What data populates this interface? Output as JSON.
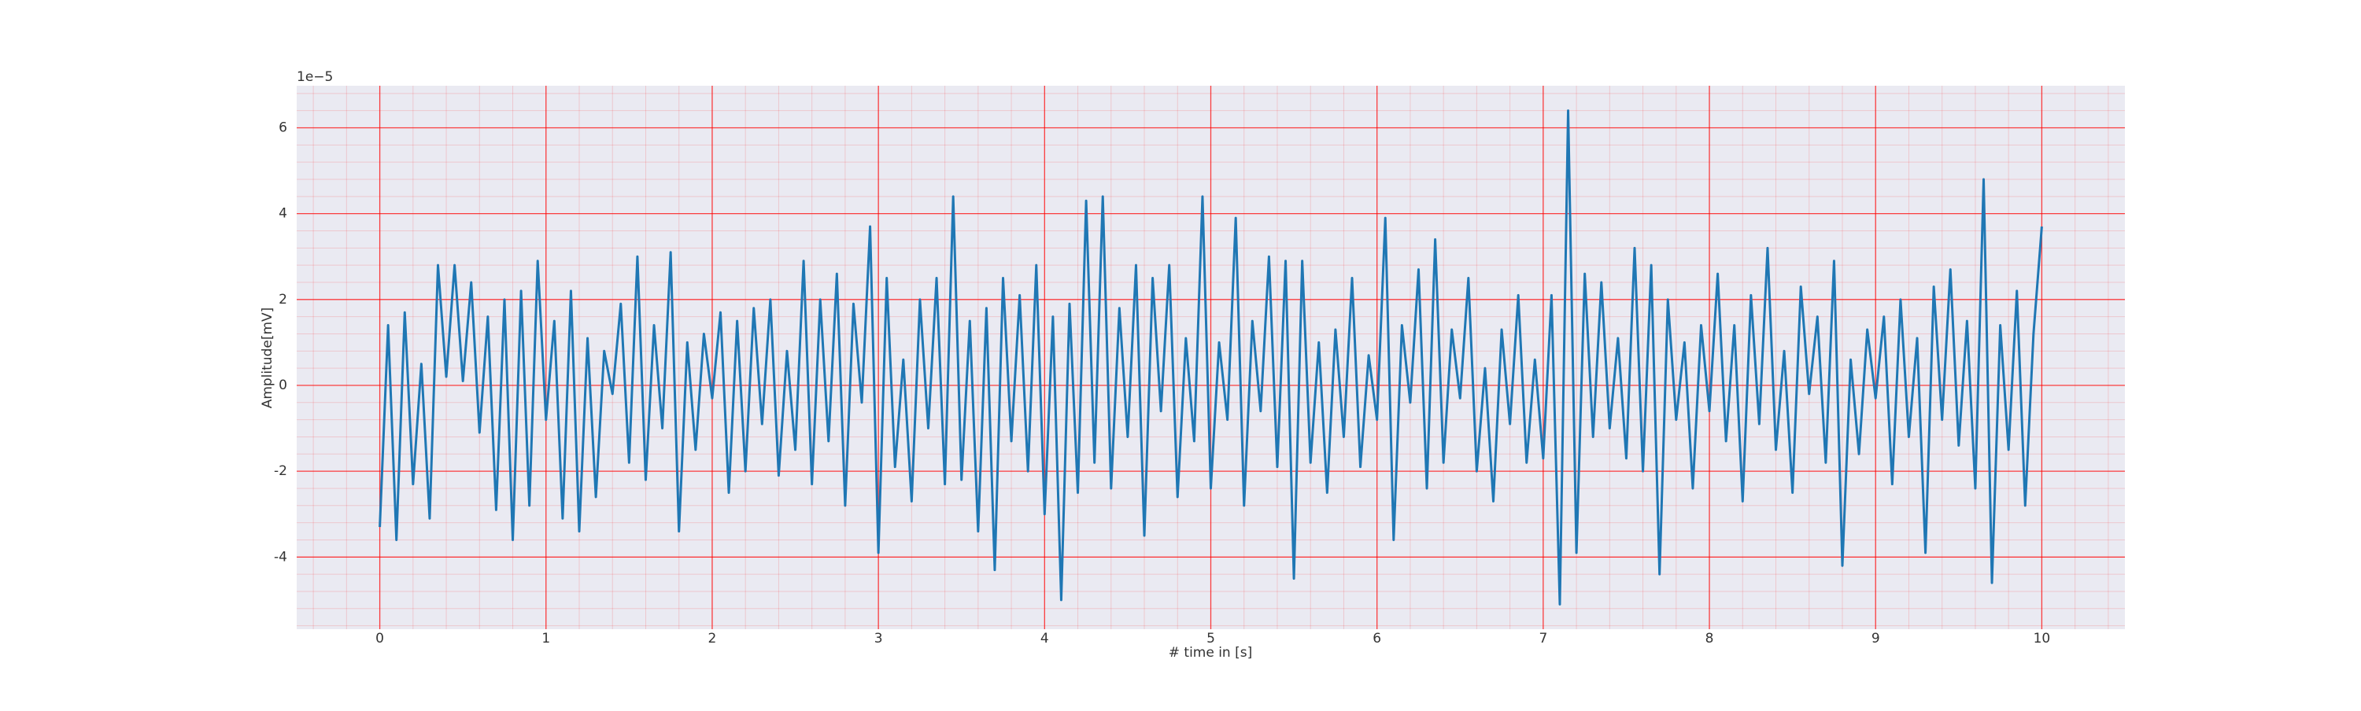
{
  "chart_data": {
    "type": "line",
    "x_label": "# time in [s]",
    "y_label": "Amplitude[mV]",
    "y_offset_label": "1e−5",
    "x": [
      0,
      0.05,
      0.1,
      0.15,
      0.2,
      0.25,
      0.3,
      0.35,
      0.4,
      0.45,
      0.5,
      0.55,
      0.6,
      0.65,
      0.7,
      0.75,
      0.8,
      0.85,
      0.9,
      0.95,
      1,
      1.05,
      1.1,
      1.15,
      1.2,
      1.25,
      1.3,
      1.35,
      1.4,
      1.45,
      1.5,
      1.55,
      1.6,
      1.65,
      1.7,
      1.75,
      1.8,
      1.85,
      1.9,
      1.95,
      2,
      2.05,
      2.1,
      2.15,
      2.2,
      2.25,
      2.3,
      2.35,
      2.4,
      2.45,
      2.5,
      2.55,
      2.6,
      2.65,
      2.7,
      2.75,
      2.8,
      2.85,
      2.9,
      2.95,
      3,
      3.05,
      3.1,
      3.15,
      3.2,
      3.25,
      3.3,
      3.35,
      3.4,
      3.45,
      3.5,
      3.55,
      3.6,
      3.65,
      3.7,
      3.75,
      3.8,
      3.85,
      3.9,
      3.95,
      4,
      4.05,
      4.1,
      4.15,
      4.2,
      4.25,
      4.3,
      4.35,
      4.4,
      4.45,
      4.5,
      4.55,
      4.6,
      4.65,
      4.7,
      4.75,
      4.8,
      4.85,
      4.9,
      4.95,
      5,
      5.05,
      5.1,
      5.15,
      5.2,
      5.25,
      5.3,
      5.35,
      5.4,
      5.45,
      5.5,
      5.55,
      5.6,
      5.65,
      5.7,
      5.75,
      5.8,
      5.85,
      5.9,
      5.95,
      6,
      6.05,
      6.1,
      6.15,
      6.2,
      6.25,
      6.3,
      6.35,
      6.4,
      6.45,
      6.5,
      6.55,
      6.6,
      6.65,
      6.7,
      6.75,
      6.8,
      6.85,
      6.9,
      6.95,
      7,
      7.05,
      7.1,
      7.15,
      7.2,
      7.25,
      7.3,
      7.35,
      7.4,
      7.45,
      7.5,
      7.55,
      7.6,
      7.65,
      7.7,
      7.75,
      7.8,
      7.85,
      7.9,
      7.95,
      8,
      8.05,
      8.1,
      8.15,
      8.2,
      8.25,
      8.3,
      8.35,
      8.4,
      8.45,
      8.5,
      8.55,
      8.6,
      8.65,
      8.7,
      8.75,
      8.8,
      8.85,
      8.9,
      8.95,
      9,
      9.05,
      9.1,
      9.15,
      9.2,
      9.25,
      9.3,
      9.35,
      9.4,
      9.45,
      9.5,
      9.55,
      9.6,
      9.65,
      9.7,
      9.75,
      9.8,
      9.85,
      9.9,
      9.95,
      10
    ],
    "values": [
      -3.3,
      1.4,
      -3.6,
      1.7,
      -2.3,
      0.5,
      -3.1,
      2.8,
      0.2,
      2.8,
      0.1,
      2.4,
      -1.1,
      1.6,
      -2.9,
      2.0,
      -3.6,
      2.2,
      -2.8,
      2.9,
      -0.8,
      1.5,
      -3.1,
      2.2,
      -3.4,
      1.1,
      -2.6,
      0.8,
      -0.2,
      1.9,
      -1.8,
      3.0,
      -2.2,
      1.4,
      -1.0,
      3.1,
      -3.4,
      1.0,
      -1.5,
      1.2,
      -0.3,
      1.7,
      -2.5,
      1.5,
      -2.0,
      1.8,
      -0.9,
      2.0,
      -2.1,
      0.8,
      -1.5,
      2.9,
      -2.3,
      2.0,
      -1.3,
      2.6,
      -2.8,
      1.9,
      -0.4,
      3.7,
      -3.9,
      2.5,
      -1.9,
      0.6,
      -2.7,
      2.0,
      -1.0,
      2.5,
      -2.3,
      4.4,
      -2.2,
      1.5,
      -3.4,
      1.8,
      -4.3,
      2.5,
      -1.3,
      2.1,
      -2.0,
      2.8,
      -3.0,
      1.6,
      -5.0,
      1.9,
      -2.5,
      4.3,
      -1.8,
      4.4,
      -2.4,
      1.8,
      -1.2,
      2.8,
      -3.5,
      2.5,
      -0.6,
      2.8,
      -2.6,
      1.1,
      -1.3,
      4.4,
      -2.4,
      1.0,
      -0.8,
      3.9,
      -2.8,
      1.5,
      -0.6,
      3.0,
      -1.9,
      2.9,
      -4.5,
      2.9,
      -1.8,
      1.0,
      -2.5,
      1.3,
      -1.2,
      2.5,
      -1.9,
      0.7,
      -0.8,
      3.9,
      -3.6,
      1.4,
      -0.4,
      2.7,
      -2.4,
      3.4,
      -1.8,
      1.3,
      -0.3,
      2.5,
      -2.0,
      0.4,
      -2.7,
      1.3,
      -0.9,
      2.1,
      -1.8,
      0.6,
      -1.7,
      2.1,
      -5.1,
      6.4,
      -3.9,
      2.6,
      -1.2,
      2.4,
      -1.0,
      1.1,
      -1.7,
      3.2,
      -2.0,
      2.8,
      -4.4,
      2.0,
      -0.8,
      1.0,
      -2.4,
      1.4,
      -0.6,
      2.6,
      -1.3,
      1.4,
      -2.7,
      2.1,
      -0.9,
      3.2,
      -1.5,
      0.8,
      -2.5,
      2.3,
      -0.2,
      1.6,
      -1.8,
      2.9,
      -4.2,
      0.6,
      -1.6,
      1.3,
      -0.3,
      1.6,
      -2.3,
      2.0,
      -1.2,
      1.1,
      -3.9,
      2.3,
      -0.8,
      2.7,
      -1.4,
      1.5,
      -2.4,
      4.8,
      -4.6,
      1.4,
      -1.5,
      2.2,
      -2.8,
      1.2,
      3.7
    ],
    "color": "#1f77b4",
    "xlim": [
      -0.5,
      10.5
    ],
    "xticks": [
      0,
      1,
      2,
      3,
      4,
      5,
      6,
      7,
      8,
      9,
      10
    ],
    "ylim": [
      -5.68,
      6.98
    ],
    "yticks": [
      -4,
      -2,
      0,
      2,
      4,
      6
    ],
    "grid": true,
    "grid_color": "#ff0000",
    "minor_grid": true,
    "minor_divisions": 5,
    "background": "#eaeaf2"
  }
}
